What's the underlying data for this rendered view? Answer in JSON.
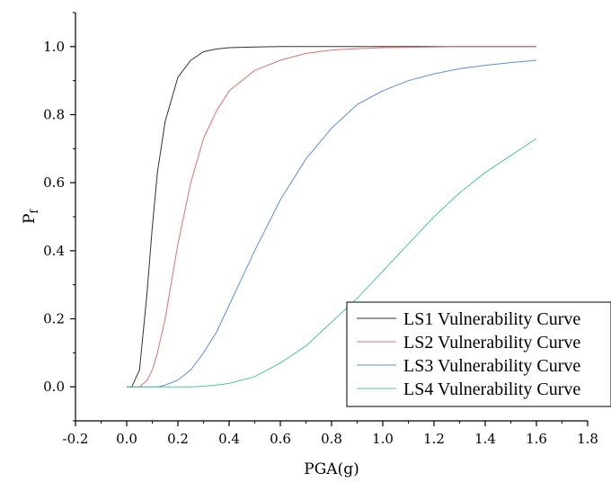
{
  "chart_data": {
    "type": "line",
    "xlabel": "PGA(g)",
    "ylabel": "P",
    "ylabel_sub": "f",
    "xlim": [
      -0.2,
      1.8
    ],
    "ylim": [
      -0.1,
      1.1
    ],
    "xticks": [
      "-0.2",
      "0.0",
      "0.2",
      "0.4",
      "0.6",
      "0.8",
      "1.0",
      "1.2",
      "1.4",
      "1.6",
      "1.8"
    ],
    "yticks": [
      "0.0",
      "0.2",
      "0.4",
      "0.6",
      "0.8",
      "1.0"
    ],
    "grid": false,
    "legend_position": "bottom-right",
    "x": [
      0.0,
      0.02,
      0.05,
      0.08,
      0.1,
      0.12,
      0.15,
      0.2,
      0.25,
      0.3,
      0.35,
      0.4,
      0.5,
      0.6,
      0.7,
      0.8,
      0.9,
      1.0,
      1.1,
      1.2,
      1.3,
      1.4,
      1.5,
      1.6
    ],
    "series": [
      {
        "name": "LS1 Vulnerability Curve",
        "color": "#333333",
        "values": [
          0.0,
          0.0,
          0.05,
          0.28,
          0.47,
          0.63,
          0.78,
          0.91,
          0.96,
          0.985,
          0.993,
          0.997,
          0.999,
          1.0,
          1.0,
          1.0,
          1.0,
          1.0,
          1.0,
          1.0,
          1.0,
          1.0,
          1.0,
          1.0
        ]
      },
      {
        "name": "LS2 Vulnerability Curve",
        "color": "#e07070",
        "values": [
          0.0,
          0.0,
          0.0,
          0.02,
          0.05,
          0.1,
          0.2,
          0.42,
          0.6,
          0.73,
          0.81,
          0.87,
          0.93,
          0.96,
          0.98,
          0.99,
          0.994,
          0.997,
          0.998,
          0.999,
          1.0,
          1.0,
          1.0,
          1.0
        ]
      },
      {
        "name": "LS3 Vulnerability Curve",
        "color": "#5b8ee0",
        "values": [
          0.0,
          0.0,
          0.0,
          0.0,
          0.0,
          0.0,
          0.005,
          0.02,
          0.05,
          0.1,
          0.16,
          0.24,
          0.4,
          0.55,
          0.67,
          0.76,
          0.83,
          0.87,
          0.9,
          0.92,
          0.935,
          0.945,
          0.953,
          0.96
        ]
      },
      {
        "name": "LS4 Vulnerability Curve",
        "color": "#4cc79a",
        "values": [
          0.0,
          0.0,
          0.0,
          0.0,
          0.0,
          0.0,
          0.0,
          0.0,
          0.0,
          0.002,
          0.005,
          0.01,
          0.03,
          0.07,
          0.12,
          0.19,
          0.26,
          0.34,
          0.42,
          0.5,
          0.57,
          0.63,
          0.68,
          0.73
        ]
      }
    ]
  }
}
